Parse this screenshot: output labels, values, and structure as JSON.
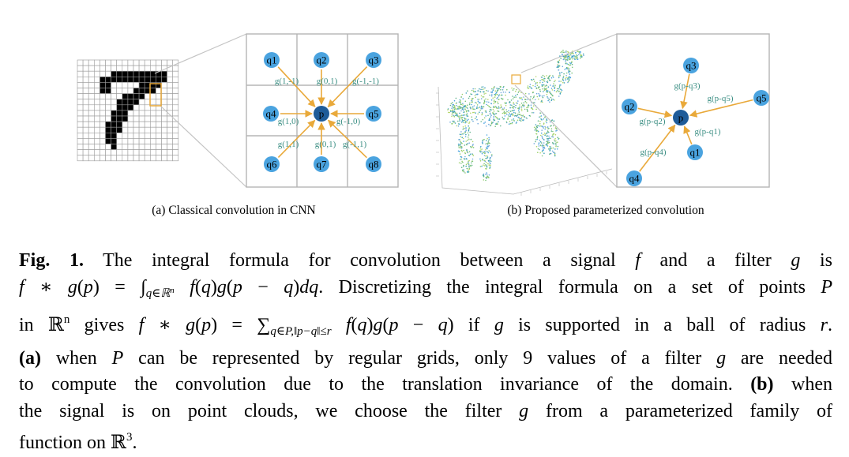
{
  "figure": {
    "panel_a": {
      "caption": "(a) Classical convolution in CNN",
      "center": "p",
      "neighbors": [
        "q1",
        "q2",
        "q3",
        "q4",
        "q5",
        "q6",
        "q7",
        "q8"
      ],
      "weights": [
        "g(1,-1)",
        "g(0,1)",
        "g(-1,-1)",
        "g(1,0)",
        "g(-1,0)",
        "g(1,1)",
        "g(0,1)",
        "g(-1,1)"
      ]
    },
    "panel_b": {
      "caption": "(b) Proposed parameterized convolution",
      "center": "p",
      "neighbors": [
        "q3",
        "q5",
        "q2",
        "q1",
        "q4"
      ],
      "weights": [
        "g(p-q3)",
        "g(p-q5)",
        "g(p-q2)",
        "g(p-q1)",
        "g(p-q4)"
      ]
    },
    "colors": {
      "node": "#4aa3df",
      "center_node": "#1f5c99",
      "arrow": "#e9a93a",
      "label": "#3c8f84",
      "grid": "#b5b5b5"
    }
  },
  "caption": {
    "label": "Fig. 1.",
    "text": "The integral formula for convolution between a signal f and a filter g is f ∗ g(p) = ∫q∈ℝn f(q)g(p − q)dq. Discretizing the integral formula on a set of points P in ℝn gives f ∗ g(p) = ∑q∈P,‖p−q‖≤r f(q)g(p − q) if g is supported in a ball of radius r. (a) when P can be represented by regular grids, only 9 values of a filter g are needed to compute the convolution due to the translation invariance of the domain. (b) when the signal is on point clouds, we choose the filter g from a parameterized family of function on ℝ3."
  }
}
